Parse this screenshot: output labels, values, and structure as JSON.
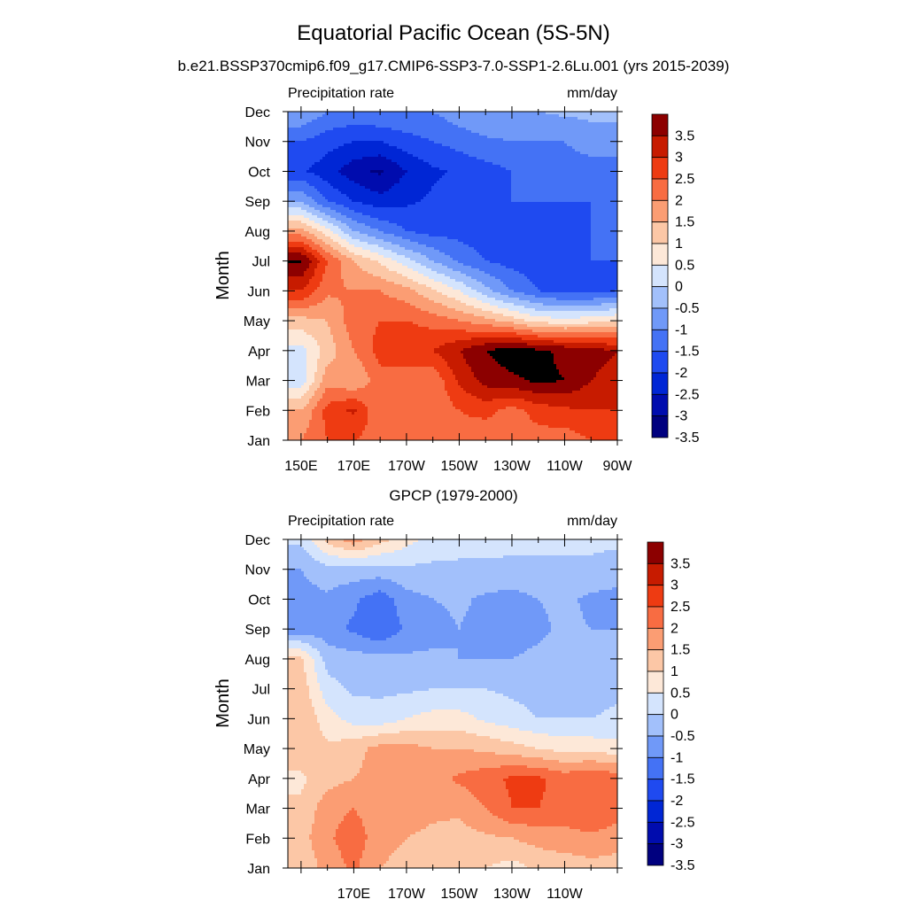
{
  "figure": {
    "title": "Equatorial Pacific Ocean (5S-5N)"
  },
  "chart_data": [
    {
      "type": "heatmap",
      "title": "b.e21.BSSP370cmip6.f09_g17.CMIP6-SSP3-7.0-SSP1-2.6Lu.001 (yrs 2015-2039)",
      "left_string": "Precipitation rate",
      "right_string": "mm/day",
      "ylabel": "Month",
      "xlabel": "",
      "x": [
        150,
        160,
        170,
        180,
        190,
        200,
        210,
        220,
        230,
        240,
        250,
        260,
        270
      ],
      "xlim": [
        145,
        270
      ],
      "x_ticks": [
        {
          "value": 150,
          "label": "150E"
        },
        {
          "value": 170,
          "label": "170E"
        },
        {
          "value": 190,
          "label": "170W"
        },
        {
          "value": 210,
          "label": "150W"
        },
        {
          "value": 230,
          "label": "130W"
        },
        {
          "value": 250,
          "label": "110W"
        },
        {
          "value": 270,
          "label": "90W"
        }
      ],
      "months": [
        "Jan",
        "Feb",
        "Mar",
        "Apr",
        "May",
        "Jun",
        "Jul",
        "Aug",
        "Sep",
        "Oct",
        "Nov",
        "Dec"
      ],
      "z": [
        [
          1.5,
          2.0,
          2.0,
          1.8,
          2.0,
          1.5,
          1.8,
          1.5,
          1.7,
          1.8,
          1.7,
          2.0,
          2.0
        ],
        [
          1.0,
          2.2,
          2.6,
          1.5,
          1.8,
          1.6,
          2.0,
          2.2,
          1.8,
          2.2,
          2.4,
          2.5,
          2.5
        ],
        [
          -0.3,
          1.3,
          1.0,
          1.8,
          1.5,
          1.6,
          2.6,
          3.2,
          3.4,
          3.6,
          3.5,
          3.0,
          2.8
        ],
        [
          -0.2,
          0.7,
          1.5,
          2.2,
          2.5,
          2.5,
          3.0,
          3.5,
          3.8,
          3.6,
          3.4,
          3.2,
          3.0
        ],
        [
          0.8,
          1.0,
          1.8,
          2.0,
          2.0,
          1.8,
          1.5,
          1.2,
          0.8,
          0.3,
          0.2,
          0.3,
          0.5
        ],
        [
          2.5,
          1.6,
          1.5,
          1.5,
          1.2,
          0.6,
          0.0,
          -0.8,
          -1.5,
          -2.0,
          -2.2,
          -2.2,
          -2.0
        ],
        [
          3.6,
          2.0,
          1.0,
          0.4,
          -0.3,
          -1.0,
          -1.6,
          -2.0,
          -2.2,
          -2.3,
          -2.2,
          -2.0,
          -2.0
        ],
        [
          1.2,
          0.2,
          -1.0,
          -1.5,
          -2.0,
          -2.2,
          -2.2,
          -2.3,
          -2.2,
          -2.2,
          -2.1,
          -2.0,
          -1.6
        ],
        [
          -1.0,
          -2.0,
          -2.5,
          -2.8,
          -2.6,
          -2.4,
          -2.3,
          -2.2,
          -2.0,
          -2.0,
          -2.0,
          -2.0,
          -2.0
        ],
        [
          -2.4,
          -2.8,
          -3.3,
          -3.6,
          -3.0,
          -2.6,
          -2.4,
          -2.2,
          -2.0,
          -1.8,
          -1.8,
          -1.8,
          -1.8
        ],
        [
          -2.0,
          -2.3,
          -2.5,
          -2.5,
          -2.2,
          -2.0,
          -1.8,
          -1.6,
          -1.5,
          -1.5,
          -1.5,
          -1.2,
          -1.2
        ],
        [
          -1.0,
          -1.5,
          -1.6,
          -1.5,
          -1.5,
          -1.5,
          -1.2,
          -1.0,
          -1.0,
          -1.0,
          -0.9,
          -0.9,
          -0.9
        ]
      ],
      "contour_levels": [
        -3.5,
        -3,
        -2.5,
        -2,
        -1.5,
        -1,
        -0.5,
        0,
        0.5,
        1,
        1.5,
        2,
        2.5,
        3,
        3.5
      ],
      "colorbar_labels": [
        "3.5",
        "3",
        "2.5",
        "2",
        "1.5",
        "1",
        "0.5",
        "0",
        "-0.5",
        "-1",
        "-1.5",
        "-2",
        "-2.5",
        "-3",
        "-3.5"
      ],
      "colors": [
        "#00007f",
        "#000cae",
        "#0026d5",
        "#1f4af0",
        "#4472f5",
        "#7099f8",
        "#a2c0fb",
        "#d4e4fd",
        "#fde8d8",
        "#fcc7a6",
        "#fb9d73",
        "#f86c42",
        "#ee3b12",
        "#c71b00",
        "#8c0000"
      ]
    },
    {
      "type": "heatmap",
      "title": "GPCP (1979-2000)",
      "left_string": "Precipitation rate",
      "right_string": "mm/day",
      "ylabel": "Month",
      "xlabel": "",
      "x": [
        150,
        160,
        170,
        180,
        190,
        200,
        210,
        220,
        230,
        240,
        250,
        260,
        270
      ],
      "xlim": [
        145,
        270
      ],
      "x_ticks": [
        {
          "value": 170,
          "label": "170E"
        },
        {
          "value": 190,
          "label": "170W"
        },
        {
          "value": 210,
          "label": "150W"
        },
        {
          "value": 230,
          "label": "130W"
        },
        {
          "value": 250,
          "label": "110W"
        }
      ],
      "months": [
        "Jan",
        "Feb",
        "Mar",
        "Apr",
        "May",
        "Jun",
        "Jul",
        "Aug",
        "Sep",
        "Oct",
        "Nov",
        "Dec"
      ],
      "z": [
        [
          0.6,
          1.2,
          1.6,
          1.0,
          0.8,
          0.7,
          0.6,
          0.5,
          0.3,
          0.6,
          0.7,
          0.8,
          0.8
        ],
        [
          0.8,
          1.4,
          1.8,
          1.2,
          1.0,
          0.9,
          0.8,
          0.9,
          1.0,
          1.2,
          1.3,
          1.4,
          1.2
        ],
        [
          0.6,
          1.3,
          1.5,
          1.2,
          1.2,
          1.1,
          1.1,
          1.5,
          2.0,
          2.0,
          1.8,
          2.0,
          1.8
        ],
        [
          0.4,
          0.8,
          1.0,
          1.2,
          1.3,
          1.3,
          1.6,
          1.8,
          2.1,
          2.1,
          1.8,
          2.0,
          1.8
        ],
        [
          0.8,
          0.6,
          0.8,
          1.2,
          1.2,
          1.0,
          1.0,
          0.9,
          0.7,
          0.5,
          0.3,
          0.3,
          0.2
        ],
        [
          1.0,
          0.2,
          -0.2,
          -0.3,
          0.0,
          0.2,
          0.2,
          -0.1,
          -0.3,
          -0.5,
          -0.5,
          -0.5,
          -0.4
        ],
        [
          0.8,
          -0.3,
          -0.6,
          -0.6,
          -0.6,
          -0.5,
          -0.5,
          -0.5,
          -0.6,
          -0.7,
          -0.7,
          -0.7,
          -0.6
        ],
        [
          0.6,
          -0.7,
          -0.8,
          -0.8,
          -0.9,
          -0.9,
          -1.0,
          -1.0,
          -1.0,
          -0.9,
          -0.8,
          -0.8,
          -0.7
        ],
        [
          -1.3,
          -1.3,
          -1.6,
          -2.0,
          -1.4,
          -1.2,
          -1.0,
          -1.2,
          -1.2,
          -1.1,
          -0.9,
          -1.0,
          -1.0
        ],
        [
          -1.2,
          -1.1,
          -1.4,
          -1.8,
          -1.2,
          -1.0,
          -0.9,
          -1.1,
          -1.2,
          -1.0,
          -0.9,
          -1.1,
          -1.2
        ],
        [
          -1.0,
          -0.7,
          -0.7,
          -0.7,
          -0.6,
          -0.6,
          -0.6,
          -0.6,
          -0.6,
          -0.6,
          -0.6,
          -0.6,
          -0.7
        ],
        [
          -0.4,
          0.7,
          1.3,
          0.7,
          0.2,
          -0.2,
          -0.3,
          -0.3,
          -0.4,
          -0.4,
          -0.4,
          -0.4,
          -0.4
        ]
      ],
      "contour_levels": [
        -3.5,
        -3,
        -2.5,
        -2,
        -1.5,
        -1,
        -0.5,
        0,
        0.5,
        1,
        1.5,
        2,
        2.5,
        3,
        3.5
      ],
      "colorbar_labels": [
        "3.5",
        "3",
        "2.5",
        "2",
        "1.5",
        "1",
        "0.5",
        "0",
        "-0.5",
        "-1",
        "-1.5",
        "-2",
        "-2.5",
        "-3",
        "-3.5"
      ],
      "colors": [
        "#00007f",
        "#000cae",
        "#0026d5",
        "#1f4af0",
        "#4472f5",
        "#7099f8",
        "#a2c0fb",
        "#d4e4fd",
        "#fde8d8",
        "#fcc7a6",
        "#fb9d73",
        "#f86c42",
        "#ee3b12",
        "#c71b00",
        "#8c0000"
      ]
    }
  ]
}
